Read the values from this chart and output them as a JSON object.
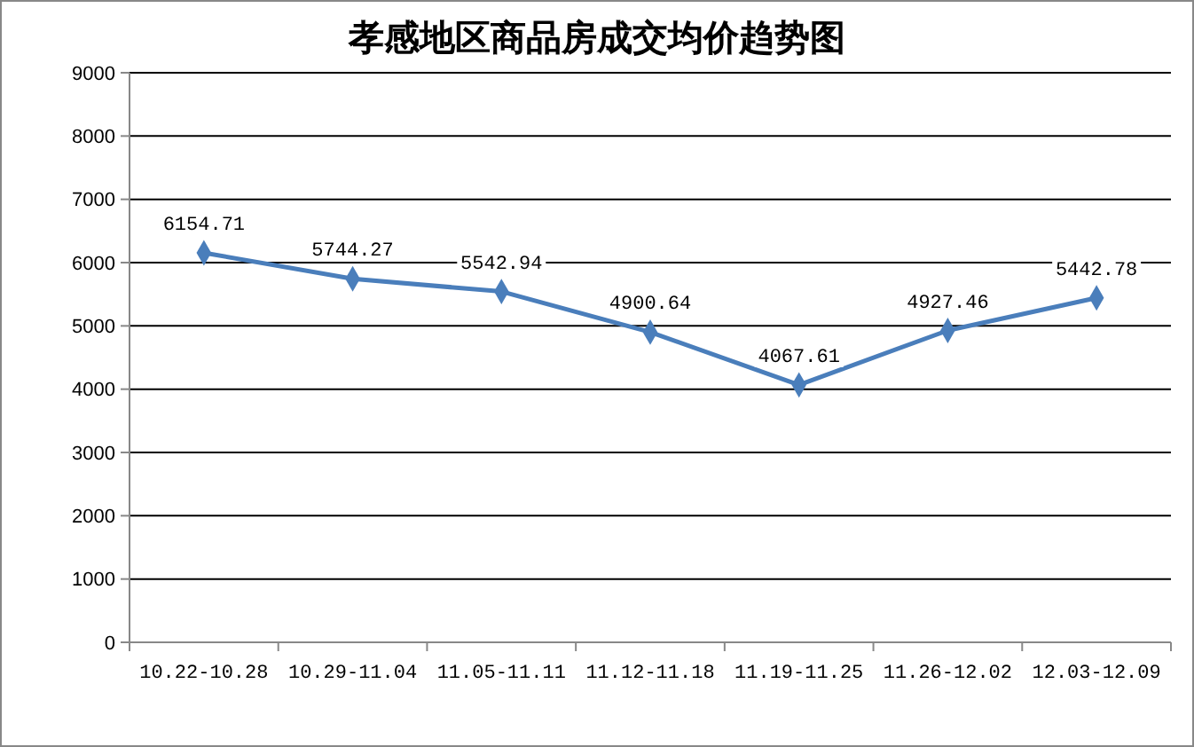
{
  "chart_data": {
    "type": "line",
    "title": "孝感地区商品房成交均价趋势图",
    "categories": [
      "10.22-10.28",
      "10.29-11.04",
      "11.05-11.11",
      "11.12-11.18",
      "11.19-11.25",
      "11.26-12.02",
      "12.03-12.09"
    ],
    "series": [
      {
        "color": "#4a7ebb",
        "values": [
          6154.71,
          5744.27,
          5542.94,
          4900.64,
          4067.61,
          4927.46,
          5442.78
        ]
      }
    ],
    "ylim": [
      0,
      9000
    ],
    "yticks": [
      0,
      1000,
      2000,
      3000,
      4000,
      5000,
      6000,
      7000,
      8000,
      9000
    ],
    "grid": "y",
    "marker": "diamond",
    "line_style": "solid",
    "data_labels": true
  }
}
